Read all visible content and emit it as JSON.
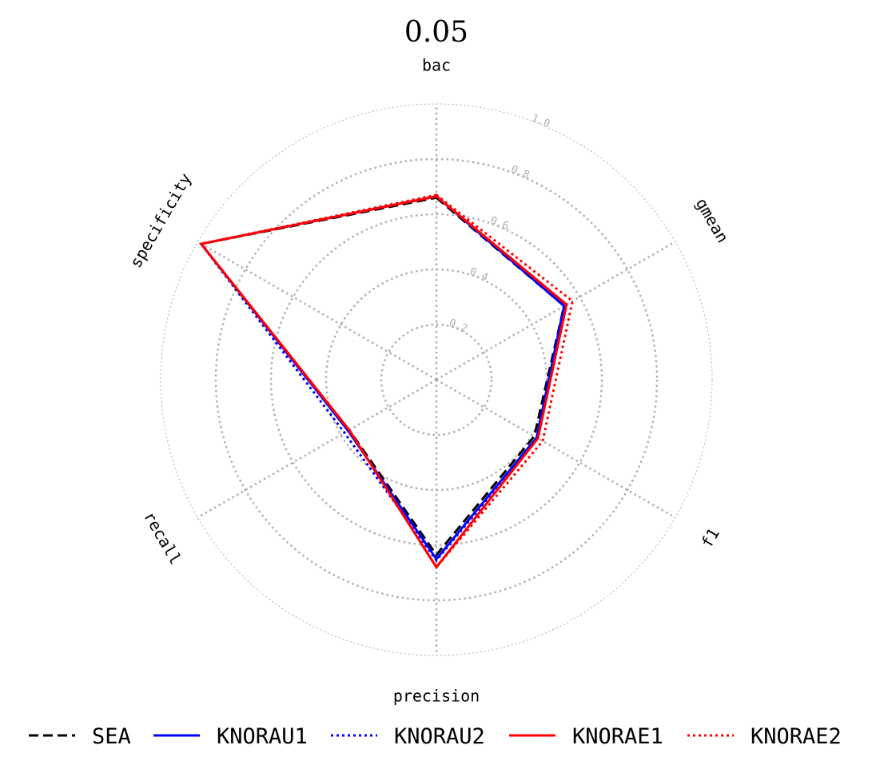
{
  "chart_data": {
    "type": "radar",
    "title": "0.05",
    "axes": [
      "bac",
      "gmean",
      "f1",
      "precision",
      "recall",
      "specificity"
    ],
    "rlim": [
      0,
      1.0
    ],
    "rticks": [
      "0.2",
      "0.4",
      "0.6",
      "0.8",
      "1.0"
    ],
    "grid": true,
    "legend_position": "bottom",
    "series": [
      {
        "name": "SEA",
        "color": "#000000",
        "dash": "dashed",
        "values": [
          0.66,
          0.535,
          0.41,
          0.635,
          0.365,
          0.985
        ]
      },
      {
        "name": "KNORAU1",
        "color": "#0000ff",
        "dash": "solid",
        "values": [
          0.665,
          0.535,
          0.42,
          0.65,
          0.37,
          0.985
        ]
      },
      {
        "name": "KNORAU2",
        "color": "#0000ff",
        "dash": "dotted",
        "values": [
          0.665,
          0.545,
          0.425,
          0.655,
          0.385,
          0.985
        ]
      },
      {
        "name": "KNORAE1",
        "color": "#ff0000",
        "dash": "solid",
        "values": [
          0.665,
          0.545,
          0.425,
          0.68,
          0.365,
          0.985
        ]
      },
      {
        "name": "KNORAE2",
        "color": "#ff0000",
        "dash": "dotted",
        "values": [
          0.67,
          0.57,
          0.445,
          0.68,
          0.365,
          0.985
        ]
      }
    ]
  }
}
